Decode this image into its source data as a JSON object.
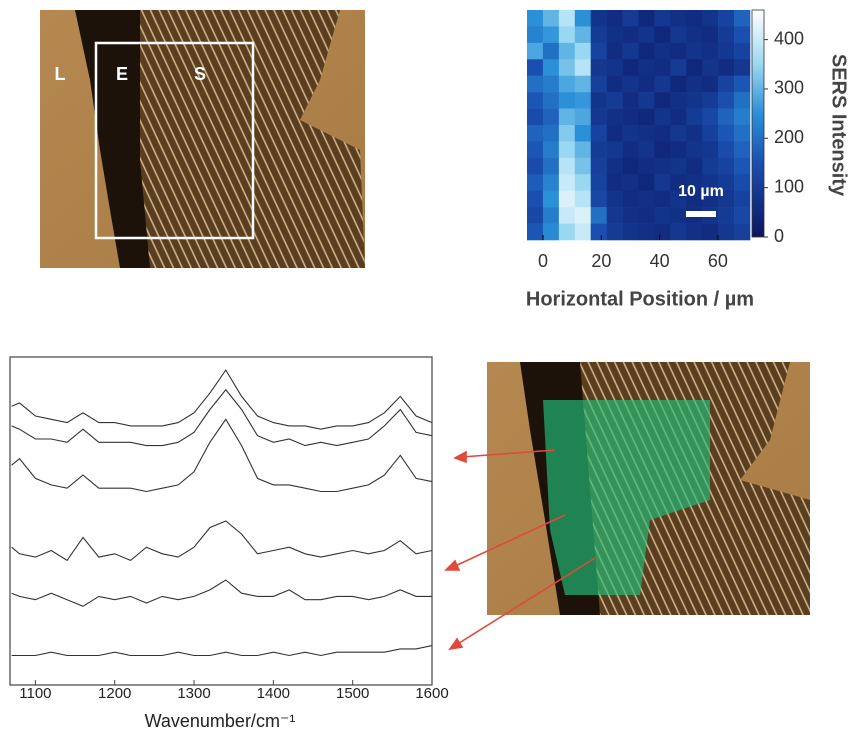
{
  "micrograph": {
    "labels": [
      "L",
      "E",
      "S"
    ]
  },
  "chart_data": [
    {
      "type": "heatmap",
      "xlabel": "Horizontal Position / µm",
      "colorbar_label": "SERS Intensity",
      "scale_bar_label": "10 µm",
      "xlim": [
        -5.5,
        71
      ],
      "xticks": [
        0,
        20,
        40,
        60
      ],
      "clim": [
        0,
        460
      ],
      "cticks": [
        0,
        100,
        200,
        300,
        400
      ],
      "colorscale": [
        [
          0,
          "#0b1560"
        ],
        [
          150,
          "#1a4fb0"
        ],
        [
          250,
          "#2a90d8"
        ],
        [
          350,
          "#9ad8f2"
        ],
        [
          460,
          "#ffffff"
        ]
      ],
      "z": [
        [
          250,
          300,
          380,
          250,
          80,
          60,
          100,
          50,
          90,
          70,
          60,
          80,
          120,
          180
        ],
        [
          230,
          260,
          350,
          300,
          100,
          70,
          60,
          80,
          50,
          90,
          70,
          60,
          100,
          150
        ],
        [
          280,
          200,
          300,
          350,
          120,
          60,
          90,
          50,
          70,
          60,
          80,
          70,
          90,
          120
        ],
        [
          150,
          250,
          320,
          380,
          90,
          80,
          50,
          70,
          60,
          100,
          50,
          80,
          60,
          90
        ],
        [
          200,
          220,
          280,
          300,
          110,
          60,
          80,
          60,
          90,
          50,
          70,
          60,
          120,
          160
        ],
        [
          160,
          200,
          250,
          260,
          80,
          100,
          60,
          90,
          50,
          70,
          80,
          100,
          150,
          200
        ],
        [
          140,
          180,
          300,
          280,
          90,
          70,
          60,
          50,
          80,
          60,
          100,
          130,
          180,
          220
        ],
        [
          180,
          200,
          330,
          250,
          120,
          60,
          80,
          70,
          60,
          90,
          70,
          110,
          160,
          200
        ],
        [
          160,
          220,
          350,
          300,
          100,
          90,
          60,
          80,
          50,
          60,
          80,
          90,
          140,
          180
        ],
        [
          140,
          200,
          380,
          320,
          110,
          70,
          50,
          60,
          70,
          80,
          60,
          100,
          120,
          160
        ],
        [
          170,
          230,
          400,
          350,
          120,
          60,
          70,
          50,
          90,
          60,
          70,
          80,
          100,
          140
        ],
        [
          150,
          250,
          420,
          380,
          130,
          80,
          60,
          70,
          60,
          80,
          60,
          70,
          90,
          120
        ],
        [
          130,
          220,
          400,
          420,
          200,
          90,
          70,
          60,
          80,
          70,
          60,
          80,
          100,
          130
        ],
        [
          160,
          240,
          350,
          400,
          150,
          100,
          80,
          70,
          60,
          90,
          70,
          60,
          90,
          110
        ]
      ]
    },
    {
      "type": "line",
      "xlabel": "Wavenumber/cm⁻¹",
      "xlim": [
        1068,
        1600
      ],
      "xticks": [
        1100,
        1200,
        1300,
        1400,
        1500,
        1600
      ],
      "ylim": [
        0,
        100
      ],
      "x": [
        1070,
        1080,
        1100,
        1120,
        1140,
        1160,
        1180,
        1200,
        1220,
        1240,
        1260,
        1280,
        1300,
        1320,
        1340,
        1360,
        1380,
        1400,
        1420,
        1440,
        1460,
        1480,
        1500,
        1520,
        1540,
        1560,
        1580,
        1600
      ],
      "series": [
        {
          "color": "#333333",
          "values": [
            85,
            86,
            82,
            81,
            80,
            83,
            80,
            80,
            79,
            79,
            79,
            80,
            83,
            89,
            96,
            88,
            82,
            80,
            79,
            79,
            78,
            79,
            79,
            80,
            83,
            88,
            82,
            80
          ]
        },
        {
          "color": "#333333",
          "values": [
            79,
            78,
            75,
            75,
            74,
            78,
            74,
            74,
            74,
            73,
            73,
            74,
            77,
            84,
            90,
            84,
            76,
            74,
            75,
            73,
            74,
            73,
            74,
            75,
            79,
            84,
            77,
            76
          ]
        },
        {
          "color": "#333333",
          "values": [
            67,
            69,
            63,
            61,
            60,
            64,
            60,
            60,
            60,
            59,
            60,
            61,
            65,
            74,
            81,
            73,
            63,
            61,
            61,
            60,
            59,
            59,
            60,
            61,
            64,
            70,
            63,
            62
          ]
        },
        {
          "color": "#333333",
          "values": [
            42,
            40,
            39,
            41,
            38,
            45,
            39,
            40,
            38,
            42,
            40,
            39,
            42,
            48,
            50,
            46,
            40,
            41,
            42,
            40,
            39,
            40,
            41,
            40,
            41,
            44,
            40,
            41
          ]
        },
        {
          "color": "#333333",
          "values": [
            28,
            27,
            26,
            28,
            26,
            24,
            27,
            26,
            27,
            25,
            27,
            26,
            27,
            29,
            32,
            28,
            27,
            27,
            29,
            26,
            26,
            27,
            27,
            26,
            27,
            29,
            27,
            27
          ]
        },
        {
          "color": "#333333",
          "values": [
            9,
            9,
            9,
            10,
            9,
            9,
            9,
            10,
            9,
            9,
            9,
            10,
            9,
            9,
            10,
            9,
            9,
            10,
            9,
            10,
            9,
            10,
            10,
            10,
            10,
            11,
            11,
            12
          ]
        }
      ]
    }
  ]
}
